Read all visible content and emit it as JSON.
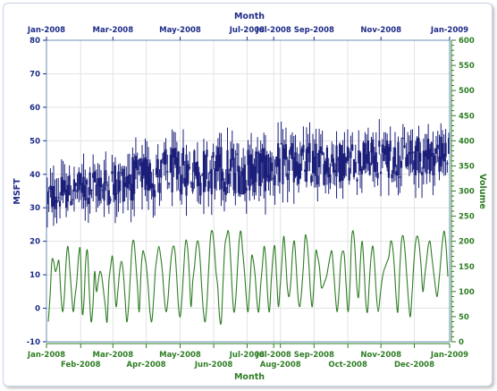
{
  "chart_data": {
    "type": "ohlc-bar-line",
    "top_axis_title": "Month",
    "bottom_axis_title": "Month",
    "left_axis_title": "MSFT",
    "right_axis_title": "Volume",
    "left_axis": {
      "min": -10,
      "max": 80,
      "ticks": [
        -10,
        0,
        10,
        20,
        30,
        40,
        50,
        60,
        70,
        80
      ]
    },
    "right_axis": {
      "min": 0,
      "max": 600,
      "ticks": [
        0,
        50,
        100,
        150,
        200,
        250,
        300,
        350,
        400,
        450,
        500,
        550,
        600
      ]
    },
    "top_ticks": [
      {
        "label": "Jan-2008",
        "pos": 0.0
      },
      {
        "label": "Mar-2008",
        "pos": 0.1648
      },
      {
        "label": "May-2008",
        "pos": 0.3315
      },
      {
        "label": "Jul-2008",
        "pos": 0.4976
      },
      {
        "label": "Jul-2008",
        "pos": 0.5636
      },
      {
        "label": "Sep-2008",
        "pos": 0.6637
      },
      {
        "label": "Nov-2008",
        "pos": 0.8298
      },
      {
        "label": "Jan-2009",
        "pos": 1.0
      }
    ],
    "bottom_ticks_row1": [
      {
        "label": "Jan-2008",
        "pos": 0.0
      },
      {
        "label": "Mar-2008",
        "pos": 0.1648
      },
      {
        "label": "May-2008",
        "pos": 0.3315
      },
      {
        "label": "Jul-2008",
        "pos": 0.4976
      },
      {
        "label": "Jul-2008",
        "pos": 0.5636
      },
      {
        "label": "Sep-2008",
        "pos": 0.6637
      },
      {
        "label": "Nov-2008",
        "pos": 0.8298
      },
      {
        "label": "Jan-2009",
        "pos": 1.0
      }
    ],
    "bottom_ticks_row2": [
      {
        "label": "Feb-2008",
        "pos": 0.0849
      },
      {
        "label": "Apr-2008",
        "pos": 0.2474
      },
      {
        "label": "Jun-2008",
        "pos": 0.4149
      },
      {
        "label": "Aug-2008",
        "pos": 0.5803
      },
      {
        "label": "Oct-2008",
        "pos": 0.7475
      },
      {
        "label": "Dec-2008",
        "pos": 0.9124
      }
    ],
    "msft_series": {
      "name": "MSFT",
      "note": "random OHLC bars, daily, Jan-2008 to Jan-2009",
      "bar_count": 255,
      "open_close_band": [
        {
          "x_frac": 0.0,
          "low": 28,
          "high": 38
        },
        {
          "x_frac": 0.1,
          "low": 30,
          "high": 42
        },
        {
          "x_frac": 0.3,
          "low": 33,
          "high": 48
        },
        {
          "x_frac": 0.5,
          "low": 34,
          "high": 49
        },
        {
          "x_frac": 0.7,
          "low": 37,
          "high": 50
        },
        {
          "x_frac": 1.0,
          "low": 40,
          "high": 52
        }
      ]
    },
    "volume_series": {
      "name": "Volume",
      "axis": "right",
      "style": "spline",
      "values": [
        40,
        90,
        160,
        160,
        140,
        150,
        160,
        100,
        60,
        90,
        160,
        190,
        150,
        100,
        60,
        90,
        120,
        170,
        180,
        60,
        80,
        160,
        180,
        100,
        40,
        70,
        140,
        100,
        120,
        140,
        130,
        100,
        70,
        40,
        120,
        150,
        170,
        120,
        70,
        100,
        140,
        160,
        140,
        90,
        40,
        70,
        130,
        190,
        200,
        160,
        110,
        60,
        140,
        180,
        170,
        150,
        110,
        60,
        40,
        80,
        140,
        170,
        190,
        170,
        140,
        90,
        60,
        80,
        130,
        170,
        190,
        180,
        130,
        70,
        50,
        90,
        150,
        200,
        190,
        140,
        70,
        120,
        150,
        190,
        200,
        170,
        110,
        60,
        40,
        80,
        150,
        210,
        220,
        190,
        140,
        110,
        50,
        40,
        120,
        190,
        210,
        220,
        180,
        110,
        60,
        80,
        140,
        200,
        220,
        180,
        140,
        90,
        60,
        110,
        170,
        160,
        130,
        80,
        60,
        110,
        150,
        190,
        160,
        90,
        60,
        120,
        170,
        190,
        130,
        70,
        110,
        160,
        210,
        170,
        110,
        90,
        120,
        180,
        200,
        150,
        90,
        70,
        100,
        150,
        210,
        200,
        160,
        100,
        70,
        120,
        180,
        170,
        150,
        110,
        110,
        120,
        130,
        150,
        170,
        180,
        140,
        90,
        60,
        100,
        160,
        180,
        170,
        110,
        60,
        100,
        200,
        220,
        180,
        110,
        90,
        160,
        200,
        150,
        80,
        60,
        120,
        170,
        190,
        150,
        90,
        60,
        90,
        120,
        140,
        150,
        160,
        170,
        200,
        190,
        150,
        90,
        60,
        140,
        200,
        210,
        180,
        130,
        80,
        50,
        100,
        160,
        200,
        210,
        190,
        150,
        100,
        130,
        160,
        190,
        200,
        170,
        140,
        110,
        90,
        120,
        160,
        200,
        220,
        190,
        130
      ]
    }
  }
}
